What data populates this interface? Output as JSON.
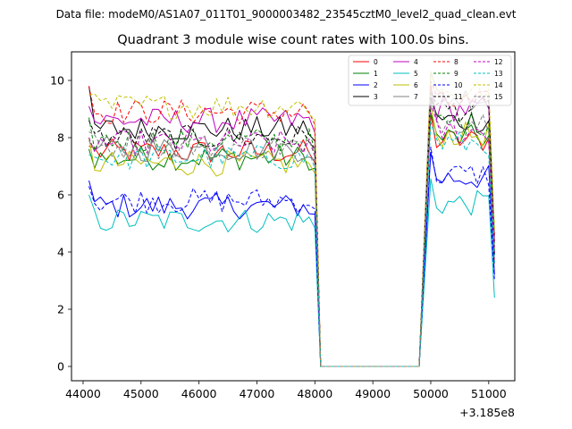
{
  "header": {
    "data_file_text": "Data file: modeM0/AS1A07_011T01_9000003482_23545cztM0_level2_quad_clean.evt"
  },
  "chart_data": {
    "type": "line",
    "title": "Quadrant 3 module wise count rates with 100.0s bins.",
    "xlabel": "",
    "ylabel": "",
    "x_offset_label": "+3.185e8",
    "xlim": [
      43800,
      51450
    ],
    "ylim": [
      -0.5,
      11.0
    ],
    "x_ticks": [
      44000,
      45000,
      46000,
      47000,
      48000,
      49000,
      50000,
      51000
    ],
    "y_ticks": [
      0,
      2,
      4,
      6,
      8,
      10
    ],
    "legend_position": "top-right",
    "legend_columns": 4,
    "segments": [
      {
        "start": 44100,
        "end": 48000,
        "step": 100
      },
      {
        "start": 48000,
        "end": 48100,
        "step": 100
      },
      {
        "start": 48100,
        "end": 49800,
        "step": 100
      },
      {
        "start": 49800,
        "end": 50000,
        "step": 200
      },
      {
        "start": 50000,
        "end": 51000,
        "step": 100
      },
      {
        "start": 51000,
        "end": 51100,
        "step": 100
      }
    ],
    "series": [
      {
        "name": "0",
        "color": "#ff0000",
        "dash": "solid",
        "level1": 7.5,
        "level2": 7.9,
        "start_val": 7.7,
        "end_val": 3.6
      },
      {
        "name": "1",
        "color": "#008000",
        "dash": "solid",
        "level1": 7.3,
        "level2": 8.0,
        "start_val": 7.6,
        "end_val": 4.3
      },
      {
        "name": "2",
        "color": "#0000ff",
        "dash": "solid",
        "level1": 5.6,
        "level2": 6.6,
        "start_val": 6.5,
        "end_val": 3.2
      },
      {
        "name": "3",
        "color": "#000000",
        "dash": "solid",
        "level1": 8.3,
        "level2": 8.6,
        "start_val": 9.8,
        "end_val": 3.9
      },
      {
        "name": "4",
        "color": "#bf00bf",
        "dash": "solid",
        "level1": 8.6,
        "level2": 9.0,
        "start_val": 9.1,
        "end_val": 4.4
      },
      {
        "name": "5",
        "color": "#00bfbf",
        "dash": "solid",
        "level1": 5.1,
        "level2": 5.7,
        "start_val": 6.0,
        "end_val": 2.4
      },
      {
        "name": "6",
        "color": "#bfbf00",
        "dash": "solid",
        "level1": 7.1,
        "level2": 8.1,
        "start_val": 8.0,
        "end_val": 4.1
      },
      {
        "name": "7",
        "color": "#808080",
        "dash": "solid",
        "level1": 7.6,
        "level2": 9.4,
        "start_val": 7.9,
        "end_val": 4.6
      },
      {
        "name": "8",
        "color": "#ff0000",
        "dash": "dashed",
        "level1": 8.9,
        "level2": 9.2,
        "start_val": 9.8,
        "end_val": 4.5
      },
      {
        "name": "9",
        "color": "#008000",
        "dash": "dashed",
        "level1": 7.9,
        "level2": 8.5,
        "start_val": 8.7,
        "end_val": 4.0
      },
      {
        "name": "10",
        "color": "#0000ff",
        "dash": "dashed",
        "level1": 5.8,
        "level2": 6.7,
        "start_val": 6.3,
        "end_val": 3.0
      },
      {
        "name": "11",
        "color": "#000000",
        "dash": "dashed",
        "level1": 8.0,
        "level2": 9.0,
        "start_val": 8.6,
        "end_val": 4.2
      },
      {
        "name": "12",
        "color": "#bf00bf",
        "dash": "dashed",
        "level1": 7.8,
        "level2": 8.2,
        "start_val": 8.0,
        "end_val": 4.0
      },
      {
        "name": "13",
        "color": "#00bfbf",
        "dash": "dashed",
        "level1": 7.3,
        "level2": 7.8,
        "start_val": 7.4,
        "end_val": 3.6
      },
      {
        "name": "14",
        "color": "#bfbf00",
        "dash": "dashed",
        "level1": 9.1,
        "level2": 9.6,
        "start_val": 9.5,
        "end_val": 4.8
      },
      {
        "name": "15",
        "color": "#808080",
        "dash": "dashed",
        "level1": 7.7,
        "level2": 8.6,
        "start_val": 8.2,
        "end_val": 4.1
      }
    ]
  }
}
